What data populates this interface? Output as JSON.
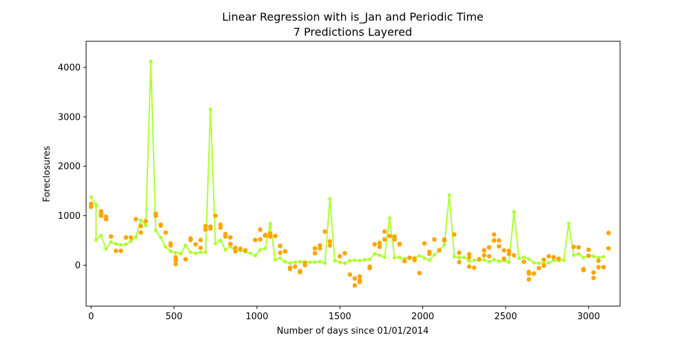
{
  "chart_data": {
    "type": "scatter",
    "title": "Linear Regression with is_Jan and Periodic Time",
    "subtitle": "7 Predictions Layered",
    "xlabel": "Number of days since 01/01/2014",
    "ylabel": "Foreclosures",
    "xlim": [
      -30,
      3190
    ],
    "ylim": [
      -830,
      4530
    ],
    "xticks": [
      0,
      500,
      1000,
      1500,
      2000,
      2500,
      3000
    ],
    "yticks": [
      0,
      1000,
      2000,
      3000,
      4000
    ],
    "grid": false,
    "series": [
      {
        "kind": "line",
        "color": "#adff2f",
        "marker": "circle",
        "points": [
          [
            0,
            1380
          ],
          [
            30,
            1200
          ],
          [
            30,
            1230
          ],
          [
            30,
            510
          ],
          [
            60,
            600
          ],
          [
            90,
            330
          ],
          [
            120,
            470
          ],
          [
            150,
            430
          ],
          [
            180,
            410
          ],
          [
            210,
            420
          ],
          [
            240,
            480
          ],
          [
            270,
            570
          ],
          [
            300,
            910
          ],
          [
            330,
            800
          ],
          [
            360,
            4120
          ],
          [
            390,
            700
          ],
          [
            420,
            560
          ],
          [
            450,
            370
          ],
          [
            480,
            280
          ],
          [
            510,
            250
          ],
          [
            540,
            230
          ],
          [
            570,
            400
          ],
          [
            600,
            260
          ],
          [
            630,
            240
          ],
          [
            660,
            260
          ],
          [
            690,
            260
          ],
          [
            720,
            3150
          ],
          [
            750,
            440
          ],
          [
            780,
            500
          ],
          [
            810,
            310
          ],
          [
            840,
            380
          ],
          [
            870,
            290
          ],
          [
            900,
            290
          ],
          [
            930,
            270
          ],
          [
            960,
            240
          ],
          [
            990,
            190
          ],
          [
            1020,
            310
          ],
          [
            1050,
            340
          ],
          [
            1080,
            840
          ],
          [
            1110,
            110
          ],
          [
            1140,
            140
          ],
          [
            1170,
            70
          ],
          [
            1200,
            40
          ],
          [
            1230,
            60
          ],
          [
            1260,
            70
          ],
          [
            1290,
            70
          ],
          [
            1320,
            60
          ],
          [
            1350,
            60
          ],
          [
            1380,
            70
          ],
          [
            1410,
            40
          ],
          [
            1440,
            1340
          ],
          [
            1470,
            90
          ],
          [
            1500,
            60
          ],
          [
            1530,
            40
          ],
          [
            1560,
            90
          ],
          [
            1590,
            100
          ],
          [
            1620,
            90
          ],
          [
            1650,
            110
          ],
          [
            1680,
            120
          ],
          [
            1710,
            230
          ],
          [
            1740,
            200
          ],
          [
            1770,
            160
          ],
          [
            1800,
            950
          ],
          [
            1830,
            150
          ],
          [
            1860,
            160
          ],
          [
            1890,
            130
          ],
          [
            1920,
            130
          ],
          [
            1950,
            150
          ],
          [
            1980,
            190
          ],
          [
            2010,
            140
          ],
          [
            2040,
            100
          ],
          [
            2070,
            210
          ],
          [
            2100,
            300
          ],
          [
            2130,
            410
          ],
          [
            2160,
            1420
          ],
          [
            2190,
            170
          ],
          [
            2220,
            150
          ],
          [
            2250,
            160
          ],
          [
            2280,
            80
          ],
          [
            2310,
            100
          ],
          [
            2340,
            100
          ],
          [
            2370,
            110
          ],
          [
            2400,
            70
          ],
          [
            2430,
            110
          ],
          [
            2460,
            80
          ],
          [
            2490,
            90
          ],
          [
            2520,
            60
          ],
          [
            2550,
            1080
          ],
          [
            2580,
            140
          ],
          [
            2610,
            160
          ],
          [
            2640,
            120
          ],
          [
            2670,
            50
          ],
          [
            2700,
            40
          ],
          [
            2730,
            40
          ],
          [
            2760,
            50
          ],
          [
            2790,
            100
          ],
          [
            2820,
            90
          ],
          [
            2850,
            100
          ],
          [
            2880,
            840
          ],
          [
            2910,
            200
          ],
          [
            2940,
            230
          ],
          [
            2970,
            150
          ],
          [
            3000,
            190
          ],
          [
            3030,
            180
          ],
          [
            3060,
            150
          ],
          [
            3090,
            170
          ]
        ]
      },
      {
        "kind": "scatter",
        "color": "#ffa500",
        "marker": "circle",
        "points": [
          [
            0,
            1240
          ],
          [
            0,
            1180
          ],
          [
            60,
            1090
          ],
          [
            60,
            1040
          ],
          [
            60,
            1000
          ],
          [
            90,
            980
          ],
          [
            90,
            930
          ],
          [
            120,
            580
          ],
          [
            150,
            290
          ],
          [
            180,
            290
          ],
          [
            210,
            560
          ],
          [
            240,
            560
          ],
          [
            270,
            930
          ],
          [
            300,
            790
          ],
          [
            300,
            660
          ],
          [
            330,
            890
          ],
          [
            390,
            1040
          ],
          [
            390,
            1000
          ],
          [
            420,
            820
          ],
          [
            420,
            800
          ],
          [
            450,
            660
          ],
          [
            480,
            440
          ],
          [
            480,
            400
          ],
          [
            510,
            160
          ],
          [
            510,
            100
          ],
          [
            510,
            20
          ],
          [
            570,
            120
          ],
          [
            600,
            540
          ],
          [
            600,
            510
          ],
          [
            630,
            420
          ],
          [
            660,
            350
          ],
          [
            660,
            510
          ],
          [
            690,
            790
          ],
          [
            690,
            720
          ],
          [
            720,
            780
          ],
          [
            720,
            740
          ],
          [
            750,
            1000
          ],
          [
            780,
            820
          ],
          [
            780,
            760
          ],
          [
            810,
            630
          ],
          [
            810,
            580
          ],
          [
            840,
            560
          ],
          [
            840,
            430
          ],
          [
            870,
            350
          ],
          [
            870,
            280
          ],
          [
            900,
            330
          ],
          [
            930,
            300
          ],
          [
            990,
            510
          ],
          [
            1020,
            720
          ],
          [
            1020,
            520
          ],
          [
            1050,
            600
          ],
          [
            1050,
            610
          ],
          [
            1080,
            640
          ],
          [
            1080,
            580
          ],
          [
            1110,
            590
          ],
          [
            1140,
            390
          ],
          [
            1140,
            250
          ],
          [
            1170,
            280
          ],
          [
            1200,
            -50
          ],
          [
            1200,
            -80
          ],
          [
            1230,
            -30
          ],
          [
            1260,
            -120
          ],
          [
            1260,
            -140
          ],
          [
            1290,
            0
          ],
          [
            1290,
            40
          ],
          [
            1350,
            340
          ],
          [
            1350,
            240
          ],
          [
            1380,
            400
          ],
          [
            1380,
            340
          ],
          [
            1410,
            680
          ],
          [
            1440,
            480
          ],
          [
            1440,
            400
          ],
          [
            1500,
            180
          ],
          [
            1530,
            240
          ],
          [
            1560,
            -190
          ],
          [
            1590,
            -410
          ],
          [
            1590,
            -270
          ],
          [
            1620,
            -230
          ],
          [
            1620,
            -310
          ],
          [
            1620,
            -340
          ],
          [
            1680,
            -30
          ],
          [
            1680,
            -60
          ],
          [
            1710,
            420
          ],
          [
            1740,
            450
          ],
          [
            1740,
            370
          ],
          [
            1770,
            680
          ],
          [
            1770,
            520
          ],
          [
            1800,
            590
          ],
          [
            1830,
            580
          ],
          [
            1830,
            520
          ],
          [
            1860,
            420
          ],
          [
            1860,
            430
          ],
          [
            1890,
            80
          ],
          [
            1920,
            150
          ],
          [
            1950,
            100
          ],
          [
            1950,
            130
          ],
          [
            1980,
            -160
          ],
          [
            2010,
            440
          ],
          [
            2040,
            270
          ],
          [
            2040,
            230
          ],
          [
            2070,
            520
          ],
          [
            2100,
            300
          ],
          [
            2130,
            520
          ],
          [
            2130,
            500
          ],
          [
            2190,
            620
          ],
          [
            2220,
            250
          ],
          [
            2220,
            60
          ],
          [
            2280,
            220
          ],
          [
            2280,
            160
          ],
          [
            2280,
            -30
          ],
          [
            2310,
            -50
          ],
          [
            2340,
            120
          ],
          [
            2370,
            300
          ],
          [
            2370,
            200
          ],
          [
            2400,
            360
          ],
          [
            2400,
            180
          ],
          [
            2430,
            620
          ],
          [
            2430,
            500
          ],
          [
            2460,
            500
          ],
          [
            2460,
            380
          ],
          [
            2490,
            300
          ],
          [
            2490,
            130
          ],
          [
            2520,
            290
          ],
          [
            2520,
            230
          ],
          [
            2550,
            200
          ],
          [
            2610,
            70
          ],
          [
            2640,
            -140
          ],
          [
            2640,
            -170
          ],
          [
            2640,
            -290
          ],
          [
            2670,
            -170
          ],
          [
            2700,
            -60
          ],
          [
            2730,
            -10
          ],
          [
            2730,
            110
          ],
          [
            2760,
            180
          ],
          [
            2790,
            160
          ],
          [
            2820,
            130
          ],
          [
            2910,
            370
          ],
          [
            2940,
            360
          ],
          [
            2970,
            -80
          ],
          [
            2970,
            -100
          ],
          [
            3000,
            310
          ],
          [
            3000,
            190
          ],
          [
            3030,
            -150
          ],
          [
            3030,
            -260
          ],
          [
            3060,
            -40
          ],
          [
            3060,
            90
          ],
          [
            3090,
            -40
          ],
          [
            3120,
            650
          ],
          [
            3120,
            340
          ]
        ]
      }
    ]
  }
}
